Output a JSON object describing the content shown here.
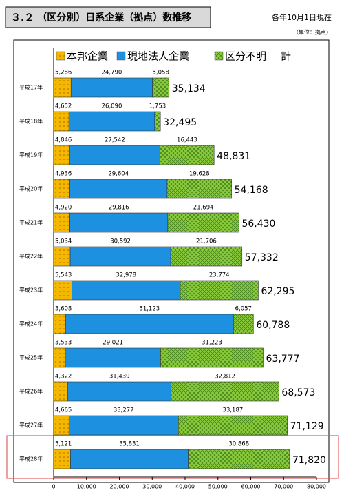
{
  "chart_data": {
    "type": "stacked-barh",
    "title": "３.２ （区分別）日系企業（拠点）数推移",
    "subtitle": "各年10月1日現在",
    "unit_note": "（単位：拠点）",
    "categories": [
      "平成17年",
      "平成18年",
      "平成19年",
      "平成20年",
      "平成21年",
      "平成22年",
      "平成23年",
      "平成24年",
      "平成25年",
      "平成26年",
      "平成27年",
      "平成28年"
    ],
    "series": [
      {
        "name": "本邦企業",
        "color": "#f5b800",
        "values": [
          5286,
          4652,
          4846,
          4936,
          4920,
          5034,
          5543,
          3608,
          3533,
          4322,
          4665,
          5121
        ],
        "value_labels": [
          "5,286",
          "4,652",
          "4,846",
          "4,936",
          "4,920",
          "5,034",
          "5,543",
          "3,608",
          "3,533",
          "4,322",
          "4,665",
          "5,121"
        ]
      },
      {
        "name": "現地法人企業",
        "color": "#1e90e0",
        "values": [
          24790,
          26090,
          27542,
          29604,
          29816,
          30592,
          32978,
          51123,
          29021,
          31439,
          33277,
          35831
        ],
        "value_labels": [
          "24,790",
          "26,090",
          "27,542",
          "29,604",
          "29,816",
          "30,592",
          "32,978",
          "51,123",
          "29,021",
          "31,439",
          "33,277",
          "35,831"
        ]
      },
      {
        "name": "区分不明",
        "color": "#8ccc3c",
        "values": [
          5058,
          1753,
          16443,
          19628,
          21694,
          21706,
          23774,
          6057,
          31223,
          32812,
          33187,
          30868
        ],
        "value_labels": [
          "5,058",
          "1,753",
          "16,443",
          "19,628",
          "21,694",
          "21,706",
          "23,774",
          "6,057",
          "31,223",
          "32,812",
          "33,187",
          "30,868"
        ]
      }
    ],
    "totals": {
      "name": "計",
      "values": [
        35134,
        32495,
        48831,
        54168,
        56430,
        57332,
        62295,
        60788,
        63777,
        68573,
        71129,
        71820
      ],
      "value_labels": [
        "35,134",
        "32,495",
        "48,831",
        "54,168",
        "56,430",
        "57,332",
        "62,295",
        "60,788",
        "63,777",
        "68,573",
        "71,129",
        "71,820"
      ]
    },
    "xlim": [
      0,
      80000
    ],
    "xticks": [
      {
        "value": 0,
        "label": "0"
      },
      {
        "value": 10000,
        "label": "10,000"
      },
      {
        "value": 20000,
        "label": "20,000"
      },
      {
        "value": 30000,
        "label": "30,000"
      },
      {
        "value": 40000,
        "label": "40,000"
      },
      {
        "value": 50000,
        "label": "50,000"
      },
      {
        "value": 60000,
        "label": "60,000"
      },
      {
        "value": 70000,
        "label": "70,000"
      },
      {
        "value": 80000,
        "label": "80,000"
      }
    ],
    "grid": false
  }
}
